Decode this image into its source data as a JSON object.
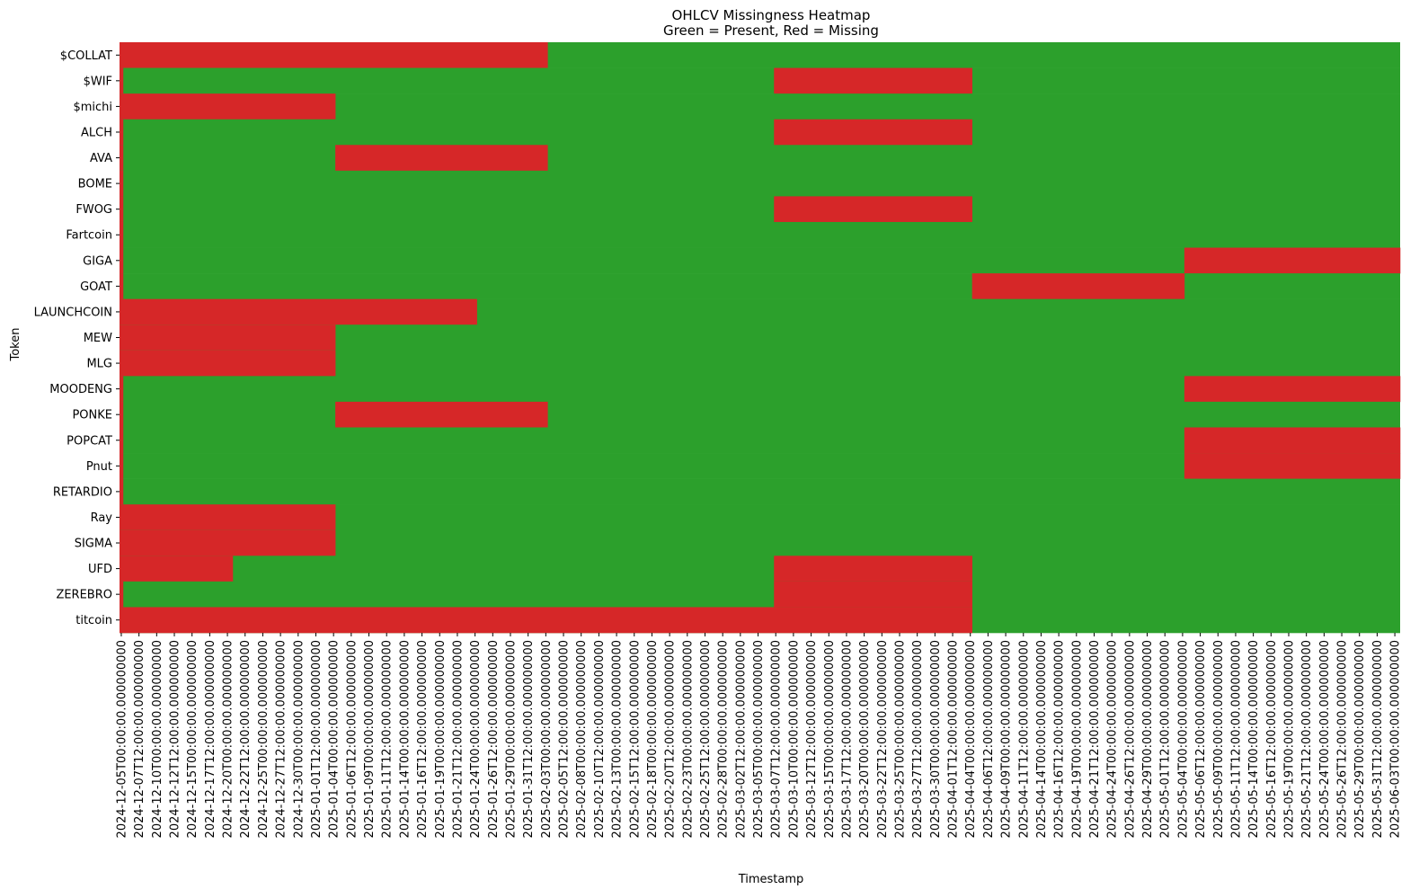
{
  "chart_data": {
    "type": "heatmap",
    "title": "OHLCV Missingness Heatmap",
    "subtitle": "Green = Present, Red = Missing",
    "xlabel": "Timestamp",
    "ylabel": "Token",
    "colors": {
      "present": "#2ca02c",
      "missing": "#d62728"
    },
    "legend": "none",
    "grid": false,
    "x_start": "2024-12-05T00:00:00",
    "x_end": "2025-06-03T12:00:00",
    "x_step_hours": 12,
    "x_tick_labels": [
      "2024-12-05T00:00:00.000000000",
      "2024-12-07T12:00:00.000000000",
      "2024-12-10T00:00:00.000000000",
      "2024-12-12T12:00:00.000000000",
      "2024-12-15T00:00:00.000000000",
      "2024-12-17T12:00:00.000000000",
      "2024-12-20T00:00:00.000000000",
      "2024-12-22T12:00:00.000000000",
      "2024-12-25T00:00:00.000000000",
      "2024-12-27T12:00:00.000000000",
      "2024-12-30T00:00:00.000000000",
      "2025-01-01T12:00:00.000000000",
      "2025-01-04T00:00:00.000000000",
      "2025-01-06T12:00:00.000000000",
      "2025-01-09T00:00:00.000000000",
      "2025-01-11T12:00:00.000000000",
      "2025-01-14T00:00:00.000000000",
      "2025-01-16T12:00:00.000000000",
      "2025-01-19T00:00:00.000000000",
      "2025-01-21T12:00:00.000000000",
      "2025-01-24T00:00:00.000000000",
      "2025-01-26T12:00:00.000000000",
      "2025-01-29T00:00:00.000000000",
      "2025-01-31T12:00:00.000000000",
      "2025-02-03T00:00:00.000000000",
      "2025-02-05T12:00:00.000000000",
      "2025-02-08T00:00:00.000000000",
      "2025-02-10T12:00:00.000000000",
      "2025-02-13T00:00:00.000000000",
      "2025-02-15T12:00:00.000000000",
      "2025-02-18T00:00:00.000000000",
      "2025-02-20T12:00:00.000000000",
      "2025-02-23T00:00:00.000000000",
      "2025-02-25T12:00:00.000000000",
      "2025-02-28T00:00:00.000000000",
      "2025-03-02T12:00:00.000000000",
      "2025-03-05T00:00:00.000000000",
      "2025-03-07T12:00:00.000000000",
      "2025-03-10T00:00:00.000000000",
      "2025-03-12T12:00:00.000000000",
      "2025-03-15T00:00:00.000000000",
      "2025-03-17T12:00:00.000000000",
      "2025-03-20T00:00:00.000000000",
      "2025-03-22T12:00:00.000000000",
      "2025-03-25T00:00:00.000000000",
      "2025-03-27T12:00:00.000000000",
      "2025-03-30T00:00:00.000000000",
      "2025-04-01T12:00:00.000000000",
      "2025-04-04T00:00:00.000000000",
      "2025-04-06T12:00:00.000000000",
      "2025-04-09T00:00:00.000000000",
      "2025-04-11T12:00:00.000000000",
      "2025-04-14T00:00:00.000000000",
      "2025-04-16T12:00:00.000000000",
      "2025-04-19T00:00:00.000000000",
      "2025-04-21T12:00:00.000000000",
      "2025-04-24T00:00:00.000000000",
      "2025-04-26T12:00:00.000000000",
      "2025-04-29T00:00:00.000000000",
      "2025-05-01T12:00:00.000000000",
      "2025-05-04T00:00:00.000000000",
      "2025-05-06T12:00:00.000000000",
      "2025-05-09T00:00:00.000000000",
      "2025-05-11T12:00:00.000000000",
      "2025-05-14T00:00:00.000000000",
      "2025-05-16T12:00:00.000000000",
      "2025-05-19T00:00:00.000000000",
      "2025-05-21T12:00:00.000000000",
      "2025-05-24T00:00:00.000000000",
      "2025-05-26T12:00:00.000000000",
      "2025-05-29T00:00:00.000000000",
      "2025-05-31T12:00:00.000000000",
      "2025-06-03T00:00:00.000000000"
    ],
    "tokens": [
      "$COLLAT",
      "$WIF",
      "$michi",
      "ALCH",
      "AVA",
      "BOME",
      "FWOG",
      "Fartcoin",
      "GIGA",
      "GOAT",
      "LAUNCHCOIN",
      "MEW",
      "MLG",
      "MOODENG",
      "PONKE",
      "POPCAT",
      "Pnut",
      "RETARDIO",
      "Ray",
      "SIGMA",
      "UFD",
      "ZEREBRO",
      "titcoin"
    ],
    "missing_ranges": [
      {
        "token": "$COLLAT",
        "ranges": [
          [
            "2024-12-05T00:00:00",
            "2025-02-03T00:00:00"
          ]
        ]
      },
      {
        "token": "$WIF",
        "ranges": [
          [
            "2024-12-05T00:00:00",
            "2024-12-05T00:00:00"
          ],
          [
            "2025-03-07T12:00:00",
            "2025-04-04T00:00:00"
          ]
        ]
      },
      {
        "token": "$michi",
        "ranges": [
          [
            "2024-12-05T00:00:00",
            "2025-01-04T00:00:00"
          ]
        ]
      },
      {
        "token": "ALCH",
        "ranges": [
          [
            "2024-12-05T00:00:00",
            "2024-12-05T00:00:00"
          ],
          [
            "2025-03-07T12:00:00",
            "2025-04-04T00:00:00"
          ]
        ]
      },
      {
        "token": "AVA",
        "ranges": [
          [
            "2024-12-05T00:00:00",
            "2024-12-05T00:00:00"
          ],
          [
            "2025-01-04T12:00:00",
            "2025-02-03T00:00:00"
          ]
        ]
      },
      {
        "token": "BOME",
        "ranges": [
          [
            "2024-12-05T00:00:00",
            "2024-12-05T00:00:00"
          ]
        ]
      },
      {
        "token": "FWOG",
        "ranges": [
          [
            "2024-12-05T00:00:00",
            "2024-12-05T00:00:00"
          ],
          [
            "2025-03-07T12:00:00",
            "2025-04-04T00:00:00"
          ]
        ]
      },
      {
        "token": "Fartcoin",
        "ranges": [
          [
            "2024-12-05T00:00:00",
            "2024-12-05T00:00:00"
          ]
        ]
      },
      {
        "token": "GIGA",
        "ranges": [
          [
            "2024-12-05T00:00:00",
            "2024-12-05T00:00:00"
          ],
          [
            "2025-05-04T12:00:00",
            "2025-06-03T12:00:00"
          ]
        ]
      },
      {
        "token": "GOAT",
        "ranges": [
          [
            "2024-12-05T00:00:00",
            "2024-12-05T00:00:00"
          ],
          [
            "2025-04-04T12:00:00",
            "2025-05-04T00:00:00"
          ]
        ]
      },
      {
        "token": "LAUNCHCOIN",
        "ranges": [
          [
            "2024-12-05T00:00:00",
            "2025-01-24T00:00:00"
          ]
        ]
      },
      {
        "token": "MEW",
        "ranges": [
          [
            "2024-12-05T00:00:00",
            "2025-01-04T00:00:00"
          ]
        ]
      },
      {
        "token": "MLG",
        "ranges": [
          [
            "2024-12-05T00:00:00",
            "2025-01-04T00:00:00"
          ]
        ]
      },
      {
        "token": "MOODENG",
        "ranges": [
          [
            "2024-12-05T00:00:00",
            "2024-12-05T00:00:00"
          ],
          [
            "2025-05-04T12:00:00",
            "2025-06-03T12:00:00"
          ]
        ]
      },
      {
        "token": "PONKE",
        "ranges": [
          [
            "2024-12-05T00:00:00",
            "2024-12-05T00:00:00"
          ],
          [
            "2025-01-04T12:00:00",
            "2025-02-03T00:00:00"
          ]
        ]
      },
      {
        "token": "POPCAT",
        "ranges": [
          [
            "2024-12-05T00:00:00",
            "2024-12-05T00:00:00"
          ],
          [
            "2025-05-04T12:00:00",
            "2025-06-03T12:00:00"
          ]
        ]
      },
      {
        "token": "Pnut",
        "ranges": [
          [
            "2024-12-05T00:00:00",
            "2024-12-05T00:00:00"
          ],
          [
            "2025-05-04T12:00:00",
            "2025-06-03T12:00:00"
          ]
        ]
      },
      {
        "token": "RETARDIO",
        "ranges": [
          [
            "2024-12-05T00:00:00",
            "2024-12-05T00:00:00"
          ]
        ]
      },
      {
        "token": "Ray",
        "ranges": [
          [
            "2024-12-05T00:00:00",
            "2025-01-04T00:00:00"
          ]
        ]
      },
      {
        "token": "SIGMA",
        "ranges": [
          [
            "2024-12-05T00:00:00",
            "2025-01-04T00:00:00"
          ]
        ]
      },
      {
        "token": "UFD",
        "ranges": [
          [
            "2024-12-05T00:00:00",
            "2024-12-20T12:00:00"
          ],
          [
            "2025-03-07T12:00:00",
            "2025-04-04T00:00:00"
          ]
        ]
      },
      {
        "token": "ZEREBRO",
        "ranges": [
          [
            "2024-12-05T00:00:00",
            "2024-12-05T00:00:00"
          ],
          [
            "2025-03-07T12:00:00",
            "2025-04-04T00:00:00"
          ]
        ]
      },
      {
        "token": "titcoin",
        "ranges": [
          [
            "2024-12-05T00:00:00",
            "2025-04-04T00:00:00"
          ]
        ]
      }
    ]
  }
}
